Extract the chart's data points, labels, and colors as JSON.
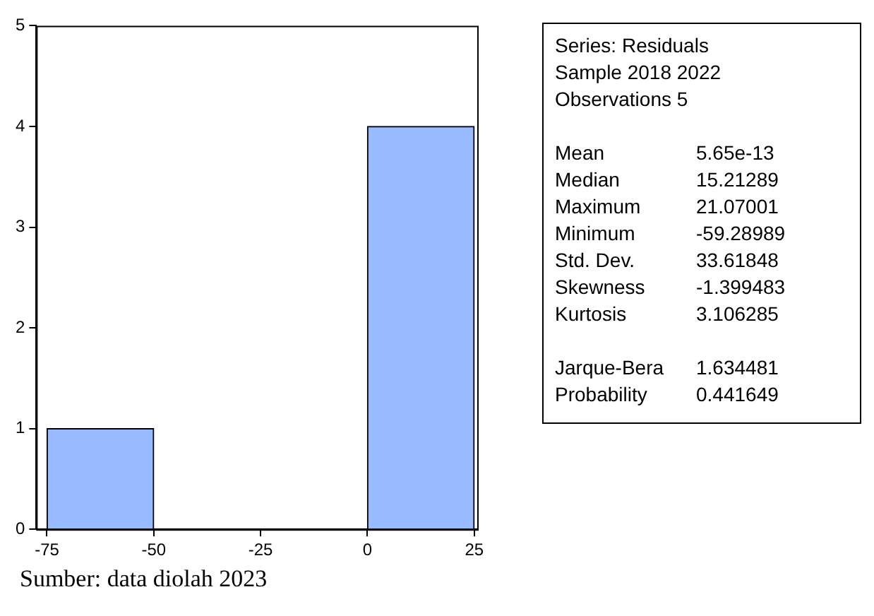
{
  "chart_data": [
    {
      "type": "histogram",
      "bins": [
        -75,
        -50,
        -25,
        0,
        25
      ],
      "values": [
        1,
        0,
        0,
        4
      ],
      "color": "#99bbff",
      "xlim": [
        -77.5,
        25.7
      ],
      "xticks": [
        -75,
        -50,
        -25,
        0,
        25
      ],
      "ylim": [
        0,
        5
      ],
      "yticks": [
        0,
        1,
        2,
        3,
        4,
        5
      ],
      "grid": false,
      "legend": false,
      "annotations": [
        "Sumber: data diolah 2023"
      ]
    },
    {
      "type": "other",
      "annotations": [
        "Series: Residuals",
        "Sample 2018 2022",
        "Observations 5",
        "Mean",
        "5.65e-13",
        "Median",
        "15.21289",
        "Maximum",
        "21.07001",
        "Minimum",
        "-59.28989",
        "Std. Dev.",
        "33.61848",
        "Skewness",
        "-1.399483",
        "Kurtosis",
        "3.106285",
        "Jarque-Bera",
        "1.634481",
        "Probability",
        "0.441649"
      ]
    }
  ]
}
